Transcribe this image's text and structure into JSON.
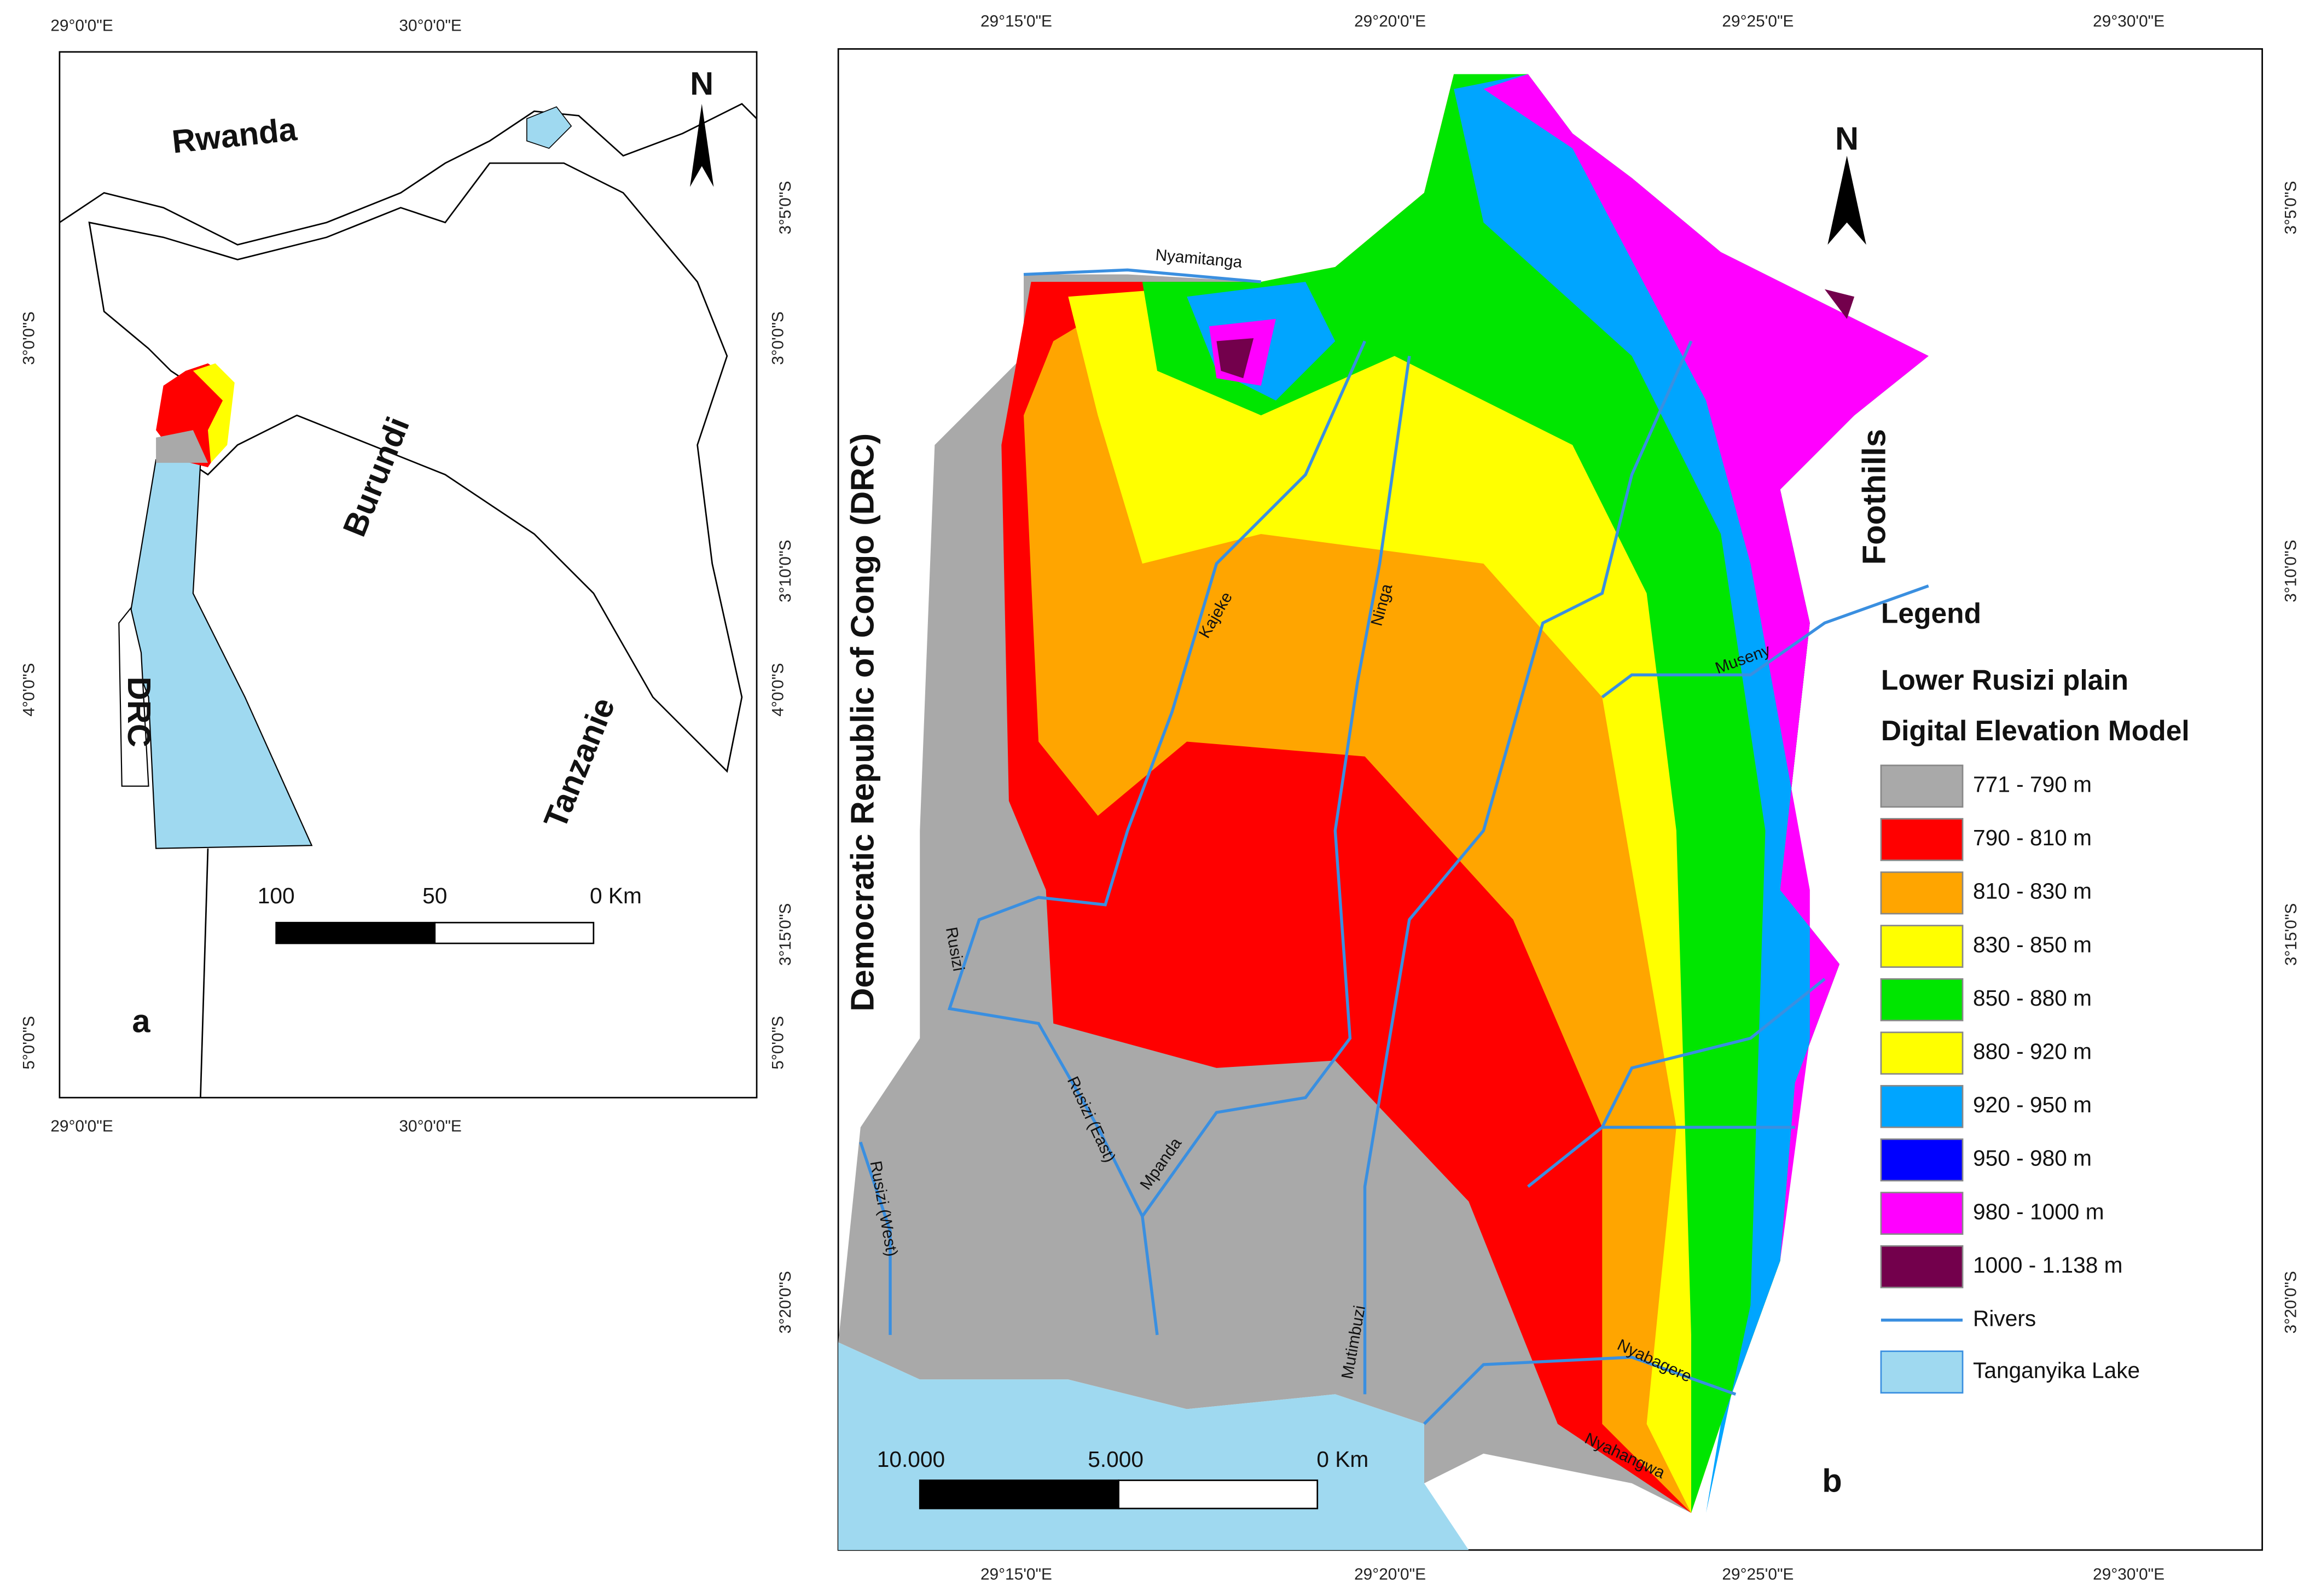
{
  "panel_a": {
    "label": "a",
    "north": "N",
    "top_ticks": [
      "29°0'0\"E",
      "30°0'0\"E"
    ],
    "bottom_ticks": [
      "29°0'0\"E",
      "30°0'0\"E"
    ],
    "left_ticks": [
      "3°0'0\"S",
      "4°0'0\"S",
      "5°0'0\"S"
    ],
    "right_ticks": [
      "3°0'0\"S",
      "4°0'0\"S",
      "5°0'0\"S"
    ],
    "places": [
      "Rwanda",
      "Burundi",
      "DRC",
      "Tanzanie"
    ],
    "scale": [
      "100",
      "50",
      "0 Km"
    ]
  },
  "panel_b": {
    "label": "b",
    "north": "N",
    "top_ticks": [
      "29°15'0\"E",
      "29°20'0\"E",
      "29°25'0\"E",
      "29°30'0\"E"
    ],
    "bottom_ticks": [
      "29°15'0\"E",
      "29°20'0\"E",
      "29°25'0\"E",
      "29°30'0\"E"
    ],
    "left_ticks": [
      "3°5'0\"S",
      "3°10'0\"S",
      "3°15'0\"S",
      "3°20'0\"S"
    ],
    "right_ticks": [
      "3°5'0\"S",
      "3°10'0\"S",
      "3°15'0\"S",
      "3°20'0\"S"
    ],
    "regions": [
      "Democratic Republic of Congo (DRC)",
      "Foothills"
    ],
    "rivers": [
      "Nyamitanga",
      "Kajeke",
      "Ninga",
      "Museny",
      "Rusizi",
      "Rusizi (East)",
      "Mpanda",
      "Rusizi (West)",
      "Mutimbuzi",
      "Nyabagere",
      "Nyahangwa"
    ],
    "scale": [
      "10.000",
      "5.000",
      "0 Km"
    ],
    "legend": {
      "title": "Legend",
      "subtitle": "Lower Rusizi plain",
      "heading": "Digital Elevation Model",
      "items": [
        {
          "label": "771 - 790 m",
          "color": "#a9a9a9"
        },
        {
          "label": "790 - 810 m",
          "color": "#ff0000"
        },
        {
          "label": "810 - 830 m",
          "color": "#ffa500"
        },
        {
          "label": "830 - 850 m",
          "color": "#ffff00"
        },
        {
          "label": "850 - 880 m",
          "color": "#00e600"
        },
        {
          "label": "880 - 920 m",
          "color": "#ffff00"
        },
        {
          "label": "920 - 950 m",
          "color": "#00a5ff"
        },
        {
          "label": "950 - 980 m",
          "color": "#0000ff"
        },
        {
          "label": "980 - 1000 m",
          "color": "#ff00ff"
        },
        {
          "label": "1000 - 1.138 m",
          "color": "#73004c"
        }
      ],
      "rivers": {
        "label": "Rivers",
        "color": "#3a8fe0"
      },
      "lake": {
        "label": "Tanganyika Lake",
        "color": "#9fd9f0"
      }
    }
  }
}
